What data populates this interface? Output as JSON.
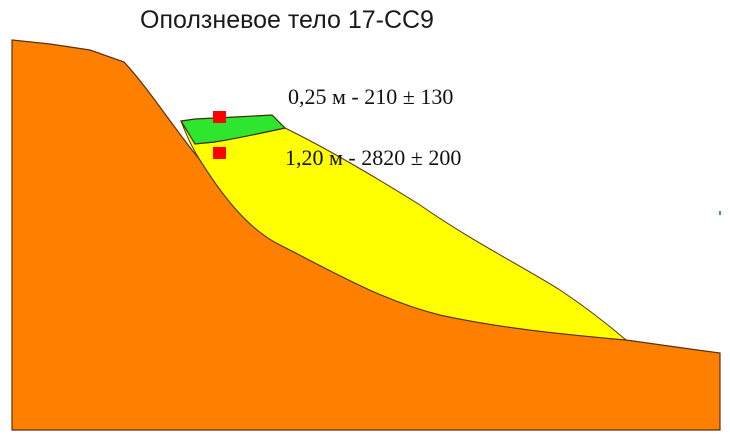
{
  "title": "Оползневое тело 17-СС9",
  "samples": [
    {
      "label": "0,25 м - 210 ± 130"
    },
    {
      "label": "1,20 м - 2820 ± 200"
    }
  ],
  "colors": {
    "bedrock": "#ff8000",
    "landslide_body": "#ffff00",
    "soil_layer": "#2ee62e",
    "sample_marker": "#ff0000",
    "outline": "#5a3010"
  }
}
